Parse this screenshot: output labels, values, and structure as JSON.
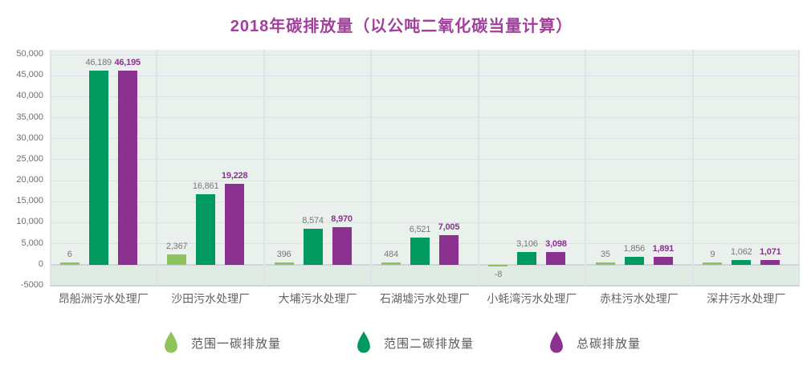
{
  "chart_data": {
    "type": "bar",
    "title": "2018年碳排放量（以公吨二氧化碳当量计算）",
    "categories": [
      "昂船洲污水处理厂",
      "沙田污水处理厂",
      "大埔污水处理厂",
      "石湖墟污水处理厂",
      "小蚝湾污水处理厂",
      "赤柱污水处理厂",
      "深井污水处理厂"
    ],
    "series": [
      {
        "name": "范围一碳排放量",
        "color": "#8ec45c",
        "values": [
          6,
          2367,
          396,
          484,
          -8,
          35,
          9
        ],
        "labels": [
          "6",
          "2,367",
          "396",
          "484",
          "-8",
          "35",
          "9"
        ],
        "label_style": "gray"
      },
      {
        "name": "范围二碳排放量",
        "color": "#009a61",
        "values": [
          46189,
          16861,
          8574,
          6521,
          3106,
          1856,
          1062
        ],
        "labels": [
          "46,189",
          "16,861",
          "8,574",
          "6,521",
          "3,106",
          "1,856",
          "1,062"
        ],
        "label_style": "gray"
      },
      {
        "name": "总碳排放量",
        "color": "#8b3190",
        "values": [
          46195,
          19228,
          8970,
          7005,
          3098,
          1891,
          1071
        ],
        "labels": [
          "46,195",
          "19,228",
          "8,970",
          "7,005",
          "3,098",
          "1,891",
          "1,071"
        ],
        "label_style": "purple-bold"
      }
    ],
    "y_axis": {
      "min": -5000,
      "max": 50000,
      "tick_step": 5000,
      "ticks": [
        50000,
        45000,
        40000,
        35000,
        30000,
        25000,
        20000,
        15000,
        10000,
        5000,
        0,
        -5000
      ],
      "tick_labels": [
        "50,000",
        "45,000",
        "40,000",
        "35,000",
        "30,000",
        "25,000",
        "20,000",
        "15,000",
        "10,000",
        "5,000",
        "0",
        "-5000"
      ]
    },
    "legend_position": "bottom",
    "grid": true
  },
  "style_colors": {
    "title": "#a23f9d",
    "scope1_green": "#8ec45c",
    "scope2_teal": "#009a61",
    "total_purple": "#8b3190",
    "value_label_gray": "#77787b",
    "axis_label_gray": "#6d6e71",
    "plot_background": "#eaf1ed",
    "negative_band_background": "#e0ebe4",
    "gridline": "#dce0ea",
    "zero_line": "#ccd5dc",
    "column_separator": "#dee2eb"
  }
}
